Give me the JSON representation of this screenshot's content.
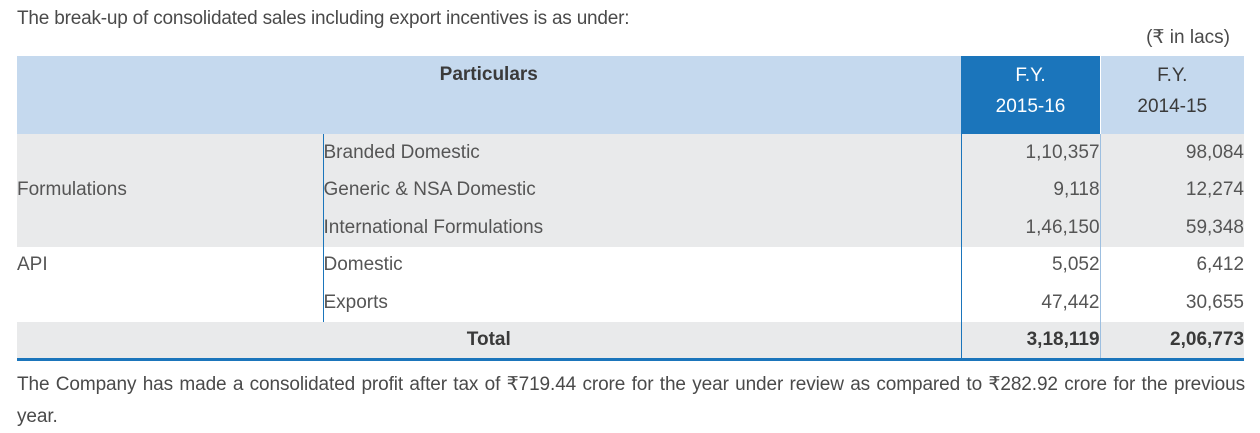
{
  "intro": "The break-up of consolidated sales including export incentives is as under:",
  "unit": "(₹ in lacs)",
  "table": {
    "header": {
      "particulars": "Particulars",
      "col1_line1": "F.Y.",
      "col1_line2": "2015-16",
      "col2_line1": "F.Y.",
      "col2_line2": "2014-15"
    },
    "groups": {
      "formulations": "Formulations",
      "api": "API"
    },
    "rows": [
      {
        "item": "Branded Domestic",
        "fy2016": "1,10,357",
        "fy2015": "98,084"
      },
      {
        "item": "Generic & NSA Domestic",
        "fy2016": "9,118",
        "fy2015": "12,274"
      },
      {
        "item": "International Formulations",
        "fy2016": "1,46,150",
        "fy2015": "59,348"
      },
      {
        "item": "Domestic",
        "fy2016": "5,052",
        "fy2015": "6,412"
      },
      {
        "item": "Exports",
        "fy2016": "47,442",
        "fy2015": "30,655"
      }
    ],
    "total": {
      "label": "Total",
      "fy2016": "3,18,119",
      "fy2015": "2,06,773"
    }
  },
  "footer": "The Company has made a consolidated profit after tax of ₹719.44 crore for the year under review as compared to ₹282.92 crore for the previous year."
}
